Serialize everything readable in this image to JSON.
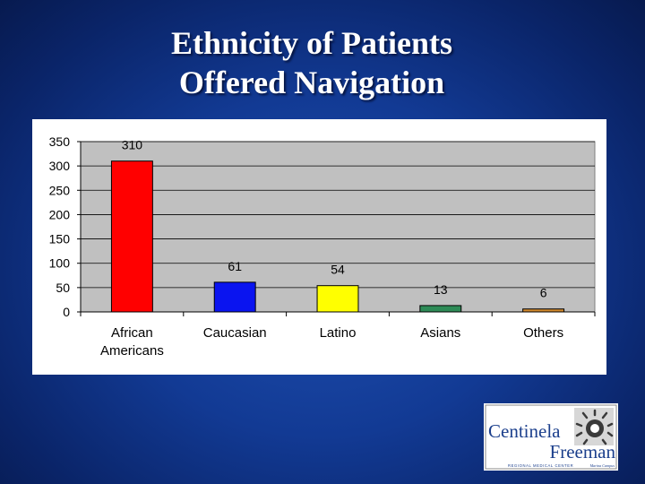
{
  "slide": {
    "title_line1": "Ethnicity of Patients",
    "title_line2": "Offered Navigation"
  },
  "chart_data": {
    "type": "bar",
    "title": "Ethnicity of Patients Offered Navigation",
    "xlabel": "",
    "ylabel": "",
    "categories": [
      "African Americans",
      "Caucasian",
      "Latino",
      "Asians",
      "Others"
    ],
    "category_lines": [
      [
        "African",
        "Americans"
      ],
      [
        "Caucasian"
      ],
      [
        "Latino"
      ],
      [
        "Asians"
      ],
      [
        "Others"
      ]
    ],
    "values": [
      310,
      61,
      54,
      13,
      6
    ],
    "colors": [
      "#ff0000",
      "#0a14f0",
      "#ffff00",
      "#2e8b57",
      "#d2892c"
    ],
    "ylim": [
      0,
      350
    ],
    "yticks": [
      0,
      50,
      100,
      150,
      200,
      250,
      300,
      350
    ],
    "grid": true,
    "plot_background": "#c0c0c0",
    "legend": "none"
  },
  "logo": {
    "name_line1": "Centinela",
    "name_line2": "Freeman",
    "tagline": "REGIONAL MEDICAL CENTER",
    "subtag": "Marina Campus",
    "color": "#1b3f8c"
  }
}
